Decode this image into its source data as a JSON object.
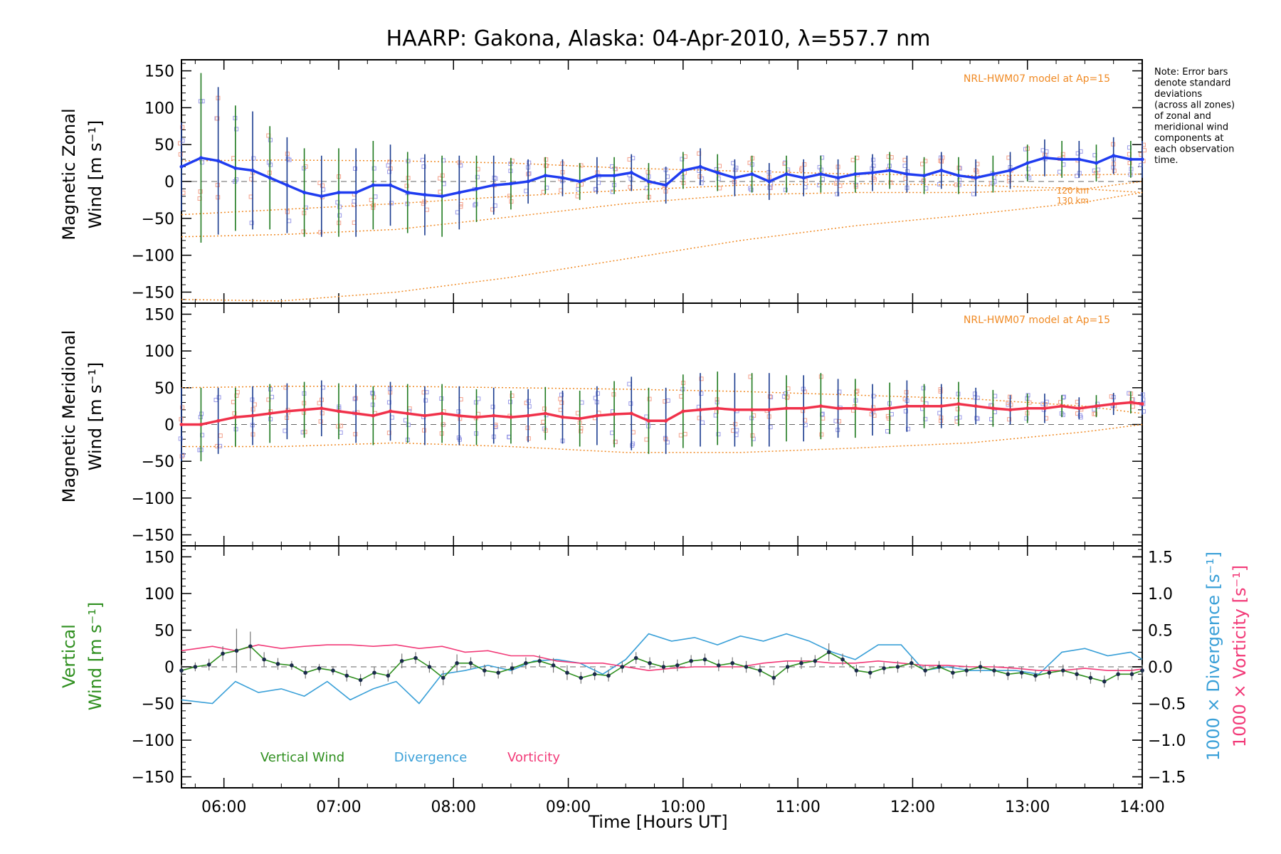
{
  "colors": {
    "zonal": "#1f3cf0",
    "meridional": "#f0314a",
    "vertical": "#2f8f1f",
    "divergence": "#3aa0d8",
    "vorticity": "#f23a78",
    "model": "#f08a24",
    "scatter": "#9a9ae8",
    "scatter_model": "#f4a08a",
    "errorbar_green": "#1f7a1f",
    "errorbar_blue": "#1a3b8f",
    "errorbar_gray": "#777777"
  },
  "chart_data": [
    {
      "type": "line",
      "title": "HAARP: Gakona,  Alaska: 04-Apr-2010, λ=557.7 nm",
      "ylabel_line1": "Magnetic Zonal",
      "ylabel_line2": "Wind [m s⁻¹]",
      "ylim": [
        -165,
        165
      ],
      "yticks": [
        150,
        100,
        50,
        0,
        -50,
        -100,
        -150
      ],
      "ytick_labels": [
        "150",
        "100",
        "50",
        "0",
        "−50",
        "−100",
        "−150"
      ],
      "xlim": [
        5.63,
        14.0
      ],
      "model_label": "NRL-HWM07 model at Ap=15",
      "model_levels": [
        "120 km",
        "130 km"
      ],
      "note": [
        "Note: Error bars",
        "denote standard",
        "deviations",
        "(across all zones)",
        "of zonal and",
        "meridional wind",
        "components at",
        "each observation",
        "time."
      ],
      "series": [
        {
          "x": [
            5.63,
            5.8,
            5.95,
            6.1,
            6.25,
            6.4,
            6.55,
            6.7,
            6.85,
            7.0,
            7.15,
            7.3,
            7.45,
            7.6,
            7.75,
            7.9,
            8.05,
            8.2,
            8.35,
            8.5,
            8.65,
            8.8,
            8.95,
            9.1,
            9.25,
            9.4,
            9.55,
            9.7,
            9.85,
            10.0,
            10.15,
            10.3,
            10.45,
            10.6,
            10.75,
            10.9,
            11.05,
            11.2,
            11.35,
            11.5,
            11.65,
            11.8,
            11.95,
            12.1,
            12.25,
            12.4,
            12.55,
            12.7,
            12.85,
            13.0,
            13.15,
            13.3,
            13.45,
            13.6,
            13.75,
            13.9,
            14.0
          ],
          "y": [
            20,
            32,
            28,
            18,
            15,
            5,
            -5,
            -15,
            -20,
            -15,
            -15,
            -5,
            -5,
            -15,
            -18,
            -20,
            -15,
            -10,
            -5,
            -3,
            0,
            8,
            5,
            0,
            8,
            8,
            12,
            0,
            -5,
            15,
            20,
            12,
            5,
            10,
            0,
            10,
            5,
            10,
            5,
            10,
            12,
            15,
            10,
            8,
            15,
            8,
            5,
            10,
            15,
            25,
            32,
            30,
            30,
            25,
            35,
            30,
            30
          ],
          "error": [
            60,
            115,
            100,
            85,
            80,
            70,
            65,
            60,
            55,
            60,
            60,
            60,
            55,
            55,
            55,
            55,
            50,
            45,
            40,
            35,
            30,
            25,
            25,
            25,
            25,
            25,
            25,
            25,
            25,
            25,
            25,
            25,
            25,
            25,
            25,
            25,
            25,
            25,
            25,
            25,
            25,
            25,
            25,
            25,
            25,
            25,
            25,
            25,
            25,
            25,
            25,
            25,
            25,
            25,
            25,
            25,
            25
          ]
        }
      ],
      "model_curves": [
        {
          "x": [
            5.63,
            6.5,
            7.5,
            8.5,
            9.5,
            10.5,
            11.5,
            12.5,
            13.5,
            14.0
          ],
          "y": [
            28,
            29,
            28,
            25,
            18,
            14,
            10,
            8,
            9,
            10
          ]
        },
        {
          "x": [
            5.63,
            6.5,
            7.5,
            8.5,
            9.5,
            10.5,
            11.5,
            12.5,
            13.5,
            14.0
          ],
          "y": [
            -75,
            -72,
            -65,
            -48,
            -30,
            -18,
            -15,
            -15,
            -10,
            0
          ]
        },
        {
          "x": [
            5.63,
            6.5,
            7.5,
            8.5,
            9.5,
            10.5,
            11.5,
            12.5,
            13.5,
            14.0
          ],
          "y": [
            -45,
            -38,
            -30,
            -20,
            -12,
            -5,
            -3,
            -5,
            -10,
            -15
          ]
        },
        {
          "x": [
            5.63,
            6.5,
            7.5,
            8.5,
            9.5,
            10.5,
            11.5,
            12.5,
            13.5,
            14.0
          ],
          "y": [
            -160,
            -162,
            -150,
            -130,
            -105,
            -80,
            -60,
            -45,
            -28,
            -15
          ]
        }
      ]
    },
    {
      "type": "line",
      "ylabel_line1": "Magnetic Meridional",
      "ylabel_line2": "Wind [m s⁻¹]",
      "ylim": [
        -165,
        165
      ],
      "yticks": [
        150,
        100,
        50,
        0,
        -50,
        -100,
        -150
      ],
      "ytick_labels": [
        "150",
        "100",
        "50",
        "0",
        "−50",
        "−100",
        "−150"
      ],
      "xlim": [
        5.63,
        14.0
      ],
      "model_label": "NRL-HWM07 model at Ap=15",
      "series": [
        {
          "x": [
            5.63,
            5.8,
            5.95,
            6.1,
            6.25,
            6.4,
            6.55,
            6.7,
            6.85,
            7.0,
            7.15,
            7.3,
            7.45,
            7.6,
            7.75,
            7.9,
            8.05,
            8.2,
            8.35,
            8.5,
            8.65,
            8.8,
            8.95,
            9.1,
            9.25,
            9.4,
            9.55,
            9.7,
            9.85,
            10.0,
            10.15,
            10.3,
            10.45,
            10.6,
            10.75,
            10.9,
            11.05,
            11.2,
            11.35,
            11.5,
            11.65,
            11.8,
            11.95,
            12.1,
            12.25,
            12.4,
            12.55,
            12.7,
            12.85,
            13.0,
            13.15,
            13.3,
            13.45,
            13.6,
            13.75,
            13.9,
            14.0
          ],
          "y": [
            0,
            0,
            5,
            10,
            12,
            15,
            18,
            20,
            22,
            18,
            15,
            12,
            18,
            15,
            12,
            15,
            12,
            10,
            12,
            10,
            12,
            15,
            10,
            8,
            12,
            14,
            15,
            5,
            5,
            18,
            20,
            22,
            20,
            20,
            20,
            22,
            22,
            25,
            22,
            22,
            20,
            22,
            25,
            25,
            25,
            28,
            25,
            22,
            20,
            22,
            22,
            25,
            22,
            25,
            28,
            30,
            28
          ],
          "error": [
            50,
            50,
            45,
            40,
            40,
            40,
            38,
            38,
            38,
            38,
            40,
            40,
            40,
            40,
            40,
            40,
            40,
            38,
            38,
            36,
            36,
            36,
            36,
            38,
            40,
            45,
            50,
            45,
            45,
            50,
            50,
            50,
            50,
            50,
            50,
            45,
            45,
            45,
            40,
            40,
            35,
            35,
            35,
            30,
            30,
            30,
            25,
            25,
            20,
            20,
            20,
            15,
            15,
            15,
            15,
            15,
            15
          ]
        }
      ],
      "model_curves": [
        {
          "x": [
            5.63,
            6.5,
            7.5,
            8.5,
            9.5,
            10.5,
            11.5,
            12.5,
            13.5,
            14.0
          ],
          "y": [
            50,
            52,
            52,
            50,
            48,
            45,
            40,
            35,
            25,
            15
          ]
        },
        {
          "x": [
            5.63,
            6.5,
            7.5,
            8.5,
            9.5,
            10.5,
            11.5,
            12.5,
            13.5,
            14.0
          ],
          "y": [
            -30,
            -30,
            -25,
            -30,
            -38,
            -38,
            -32,
            -25,
            -10,
            0
          ]
        }
      ]
    },
    {
      "type": "line",
      "ylabel_line1": "Vertical",
      "ylabel_line2": "Wind [m s⁻¹]",
      "ylim": [
        -165,
        165
      ],
      "yticks": [
        150,
        100,
        50,
        0,
        -50,
        -100,
        -150
      ],
      "ytick_labels": [
        "150",
        "100",
        "50",
        "0",
        "−50",
        "−100",
        "−150"
      ],
      "xlabel": "Time [Hours UT]",
      "xticks": [
        6,
        7,
        8,
        9,
        10,
        11,
        12,
        13,
        14
      ],
      "xtick_labels": [
        "06:00",
        "07:00",
        "08:00",
        "09:00",
        "10:00",
        "11:00",
        "12:00",
        "13:00",
        "14:00"
      ],
      "xlim": [
        5.63,
        14.0
      ],
      "y2label_div": "1000 × Divergence [s⁻¹]",
      "y2label_vort": "1000 × Vorticity [s⁻¹]",
      "y2lim": [
        -1.65,
        1.65
      ],
      "y2ticks": [
        1.5,
        1.0,
        0.5,
        0.0,
        -0.5,
        -1.0,
        -1.5
      ],
      "y2tick_labels": [
        "1.5",
        "1.0",
        "0.5",
        "0.0",
        "−0.5",
        "−1.0",
        "−1.5"
      ],
      "legend": [
        "Vertical Wind",
        "Divergence",
        "Vorticity"
      ],
      "series": [
        {
          "name": "Vertical Wind",
          "x": [
            5.63,
            5.75,
            5.87,
            5.99,
            6.11,
            6.23,
            6.35,
            6.47,
            6.59,
            6.71,
            6.83,
            6.95,
            7.07,
            7.19,
            7.31,
            7.43,
            7.55,
            7.67,
            7.79,
            7.91,
            8.03,
            8.15,
            8.27,
            8.39,
            8.51,
            8.63,
            8.75,
            8.87,
            8.99,
            9.11,
            9.23,
            9.35,
            9.47,
            9.59,
            9.71,
            9.83,
            9.95,
            10.07,
            10.19,
            10.31,
            10.43,
            10.55,
            10.67,
            10.79,
            10.91,
            11.03,
            11.15,
            11.27,
            11.39,
            11.51,
            11.63,
            11.75,
            11.87,
            11.99,
            12.11,
            12.23,
            12.35,
            12.47,
            12.59,
            12.71,
            12.83,
            12.95,
            13.07,
            13.19,
            13.31,
            13.43,
            13.55,
            13.67,
            13.79,
            13.91,
            14.0
          ],
          "y": [
            -5,
            0,
            3,
            18,
            22,
            28,
            10,
            4,
            2,
            -8,
            -2,
            -5,
            -12,
            -18,
            -8,
            -12,
            8,
            12,
            0,
            -15,
            5,
            5,
            -5,
            -8,
            -2,
            5,
            8,
            2,
            -8,
            -15,
            -10,
            -12,
            0,
            12,
            5,
            0,
            2,
            8,
            10,
            2,
            5,
            0,
            -5,
            -15,
            0,
            5,
            8,
            20,
            10,
            -5,
            -8,
            -2,
            0,
            5,
            -5,
            0,
            -8,
            -5,
            0,
            -5,
            -10,
            -8,
            -12,
            -8,
            -5,
            -10,
            -15,
            -20,
            -10,
            -10,
            -5
          ],
          "error": [
            8,
            6,
            8,
            10,
            30,
            20,
            10,
            8,
            6,
            8,
            6,
            6,
            8,
            8,
            8,
            8,
            10,
            8,
            8,
            10,
            12,
            8,
            8,
            8,
            8,
            8,
            8,
            10,
            10,
            8,
            8,
            8,
            8,
            8,
            8,
            8,
            8,
            8,
            8,
            8,
            8,
            8,
            8,
            10,
            8,
            8,
            8,
            12,
            8,
            8,
            8,
            8,
            8,
            8,
            8,
            8,
            8,
            8,
            8,
            8,
            8,
            8,
            8,
            8,
            8,
            8,
            8,
            8,
            8,
            8,
            8
          ]
        },
        {
          "name": "Divergence",
          "x": [
            5.63,
            5.9,
            6.1,
            6.3,
            6.5,
            6.7,
            6.9,
            7.1,
            7.3,
            7.5,
            7.7,
            7.9,
            8.1,
            8.3,
            8.5,
            8.7,
            8.9,
            9.1,
            9.3,
            9.5,
            9.7,
            9.9,
            10.1,
            10.3,
            10.5,
            10.7,
            10.9,
            11.1,
            11.3,
            11.5,
            11.7,
            11.9,
            12.1,
            12.3,
            12.5,
            12.7,
            12.9,
            13.1,
            13.3,
            13.5,
            13.7,
            13.9,
            14.0
          ],
          "y": [
            -0.45,
            -0.5,
            -0.2,
            -0.35,
            -0.3,
            -0.4,
            -0.2,
            -0.45,
            -0.3,
            -0.2,
            -0.5,
            -0.1,
            -0.05,
            0.02,
            -0.05,
            0.08,
            0.1,
            0.05,
            -0.1,
            0.1,
            0.45,
            0.35,
            0.4,
            0.3,
            0.42,
            0.35,
            0.45,
            0.35,
            0.2,
            0.1,
            0.3,
            0.3,
            -0.05,
            0.0,
            -0.05,
            -0.05,
            -0.05,
            -0.1,
            0.2,
            0.25,
            0.15,
            0.2,
            0.1
          ]
        },
        {
          "name": "Vorticity",
          "x": [
            5.63,
            5.9,
            6.1,
            6.3,
            6.5,
            6.7,
            6.9,
            7.1,
            7.3,
            7.5,
            7.7,
            7.9,
            8.1,
            8.3,
            8.5,
            8.7,
            8.9,
            9.1,
            9.3,
            9.5,
            9.7,
            9.9,
            10.1,
            10.3,
            10.5,
            10.7,
            10.9,
            11.1,
            11.3,
            11.5,
            11.7,
            11.9,
            12.1,
            12.3,
            12.5,
            12.7,
            12.9,
            13.1,
            13.3,
            13.5,
            13.7,
            13.9,
            14.0
          ],
          "y": [
            0.22,
            0.28,
            0.22,
            0.3,
            0.25,
            0.28,
            0.3,
            0.3,
            0.28,
            0.3,
            0.25,
            0.28,
            0.2,
            0.22,
            0.15,
            0.15,
            0.08,
            0.05,
            0.05,
            0.0,
            -0.05,
            -0.02,
            0.0,
            0.0,
            0.0,
            0.05,
            0.08,
            0.08,
            0.05,
            0.05,
            0.08,
            0.05,
            0.02,
            0.02,
            0.0,
            0.0,
            -0.02,
            -0.05,
            -0.05,
            -0.02,
            -0.05,
            -0.05,
            -0.03
          ]
        }
      ]
    }
  ]
}
